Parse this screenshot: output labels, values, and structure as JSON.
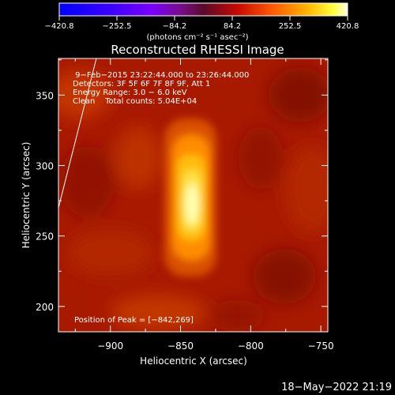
{
  "chart_data": {
    "type": "heatmap",
    "title": "Reconstructed RHESSI Image",
    "xlabel": "Heliocentric X (arcsec)",
    "ylabel": "Heliocentric Y (arcsec)",
    "xlim": [
      -937,
      -745
    ],
    "ylim": [
      182,
      376
    ],
    "x_ticks": [
      -900,
      -850,
      -800,
      -750
    ],
    "x_tick_labels": [
      "−900",
      "−850",
      "−800",
      "−750"
    ],
    "y_ticks": [
      200,
      250,
      300,
      350
    ],
    "y_tick_labels": [
      "200",
      "250",
      "300",
      "350"
    ],
    "colorbar": {
      "range": [
        -420.8,
        420.8
      ],
      "ticks": [
        -420.8,
        -252.5,
        -84.2,
        84.2,
        252.5,
        420.8
      ],
      "tick_labels": [
        "−420.8",
        "−252.5",
        "−84.2",
        "84.2",
        "252.5",
        "420.8"
      ],
      "unit_label": "(photons cm⁻² s⁻¹ asec⁻²)"
    },
    "annotations": [
      " 9−Feb−2015 23:22:44.000 to 23:26:44.000",
      "Detectors: 3F 5F 6F 7F 8F 9F, Att 1",
      "Energy Range: 3.0 − 6.0 keV",
      "Clean    Total counts: 5.04E+04"
    ],
    "peak_label": "Position of Peak = [−842,269]",
    "peak": [
      -842,
      269
    ],
    "limb_line": [
      [
        -937,
        270
      ],
      [
        -910,
        376
      ]
    ]
  },
  "footer": {
    "timestamp": "18−May−2022 21:19"
  },
  "colors": {
    "background": "#000000",
    "foreground": "#ffffff"
  }
}
